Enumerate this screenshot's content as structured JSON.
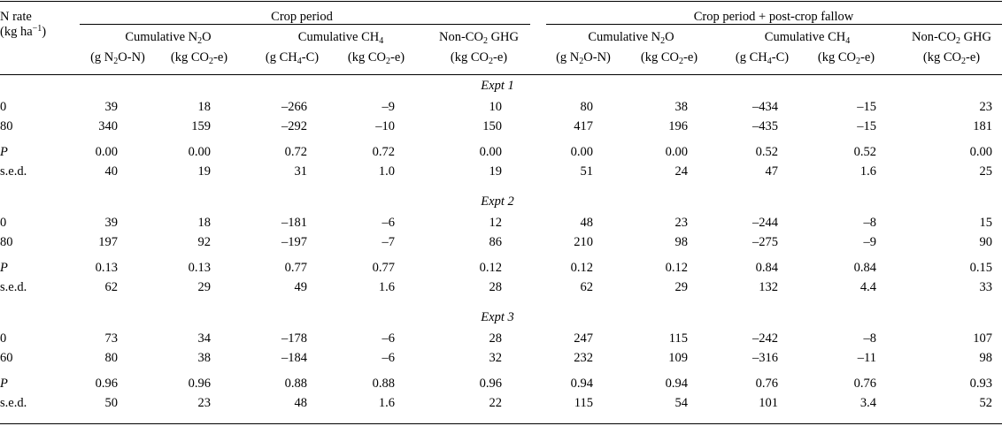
{
  "header": {
    "nrate": [
      "N rate",
      "(kg ha",
      "−1",
      ")"
    ],
    "groups": [
      "Crop period",
      "Crop period + post-crop fallow"
    ],
    "n2o": [
      "Cumulative N",
      "2",
      "O"
    ],
    "ch4": [
      "Cumulative CH",
      "4"
    ],
    "ghg": [
      "Non-CO",
      "2",
      " GHG"
    ],
    "u_n2o": [
      "(g N",
      "2",
      "O-N)"
    ],
    "u_co2e": [
      "(kg CO",
      "2",
      "-e)"
    ],
    "u_ch4": [
      "(g CH",
      "4",
      "-C)"
    ]
  },
  "experiments": [
    {
      "label": "Expt 1",
      "rows": [
        [
          "0",
          "39",
          "18",
          "–266",
          "–9",
          "10",
          "80",
          "38",
          "–434",
          "–15",
          "23"
        ],
        [
          "80",
          "340",
          "159",
          "–292",
          "–10",
          "150",
          "417",
          "196",
          "–435",
          "–15",
          "181"
        ],
        [
          "P",
          "0.00",
          "0.00",
          "0.72",
          "0.72",
          "0.00",
          "0.00",
          "0.00",
          "0.52",
          "0.52",
          "0.00"
        ],
        [
          "s.e.d.",
          "40",
          "19",
          "31",
          "1.0",
          "19",
          "51",
          "24",
          "47",
          "1.6",
          "25"
        ]
      ]
    },
    {
      "label": "Expt 2",
      "rows": [
        [
          "0",
          "39",
          "18",
          "–181",
          "–6",
          "12",
          "48",
          "23",
          "–244",
          "–8",
          "15"
        ],
        [
          "80",
          "197",
          "92",
          "–197",
          "–7",
          "86",
          "210",
          "98",
          "–275",
          "–9",
          "90"
        ],
        [
          "P",
          "0.13",
          "0.13",
          "0.77",
          "0.77",
          "0.12",
          "0.12",
          "0.12",
          "0.84",
          "0.84",
          "0.15"
        ],
        [
          "s.e.d.",
          "62",
          "29",
          "49",
          "1.6",
          "28",
          "62",
          "29",
          "132",
          "4.4",
          "33"
        ]
      ]
    },
    {
      "label": "Expt 3",
      "rows": [
        [
          "0",
          "73",
          "34",
          "–178",
          "–6",
          "28",
          "247",
          "115",
          "–242",
          "–8",
          "107"
        ],
        [
          "60",
          "80",
          "38",
          "–184",
          "–6",
          "32",
          "232",
          "109",
          "–316",
          "–11",
          "98"
        ],
        [
          "P",
          "0.96",
          "0.96",
          "0.88",
          "0.88",
          "0.96",
          "0.94",
          "0.94",
          "0.76",
          "0.76",
          "0.93"
        ],
        [
          "s.e.d.",
          "50",
          "23",
          "48",
          "1.6",
          "22",
          "115",
          "54",
          "101",
          "3.4",
          "52"
        ]
      ]
    }
  ]
}
